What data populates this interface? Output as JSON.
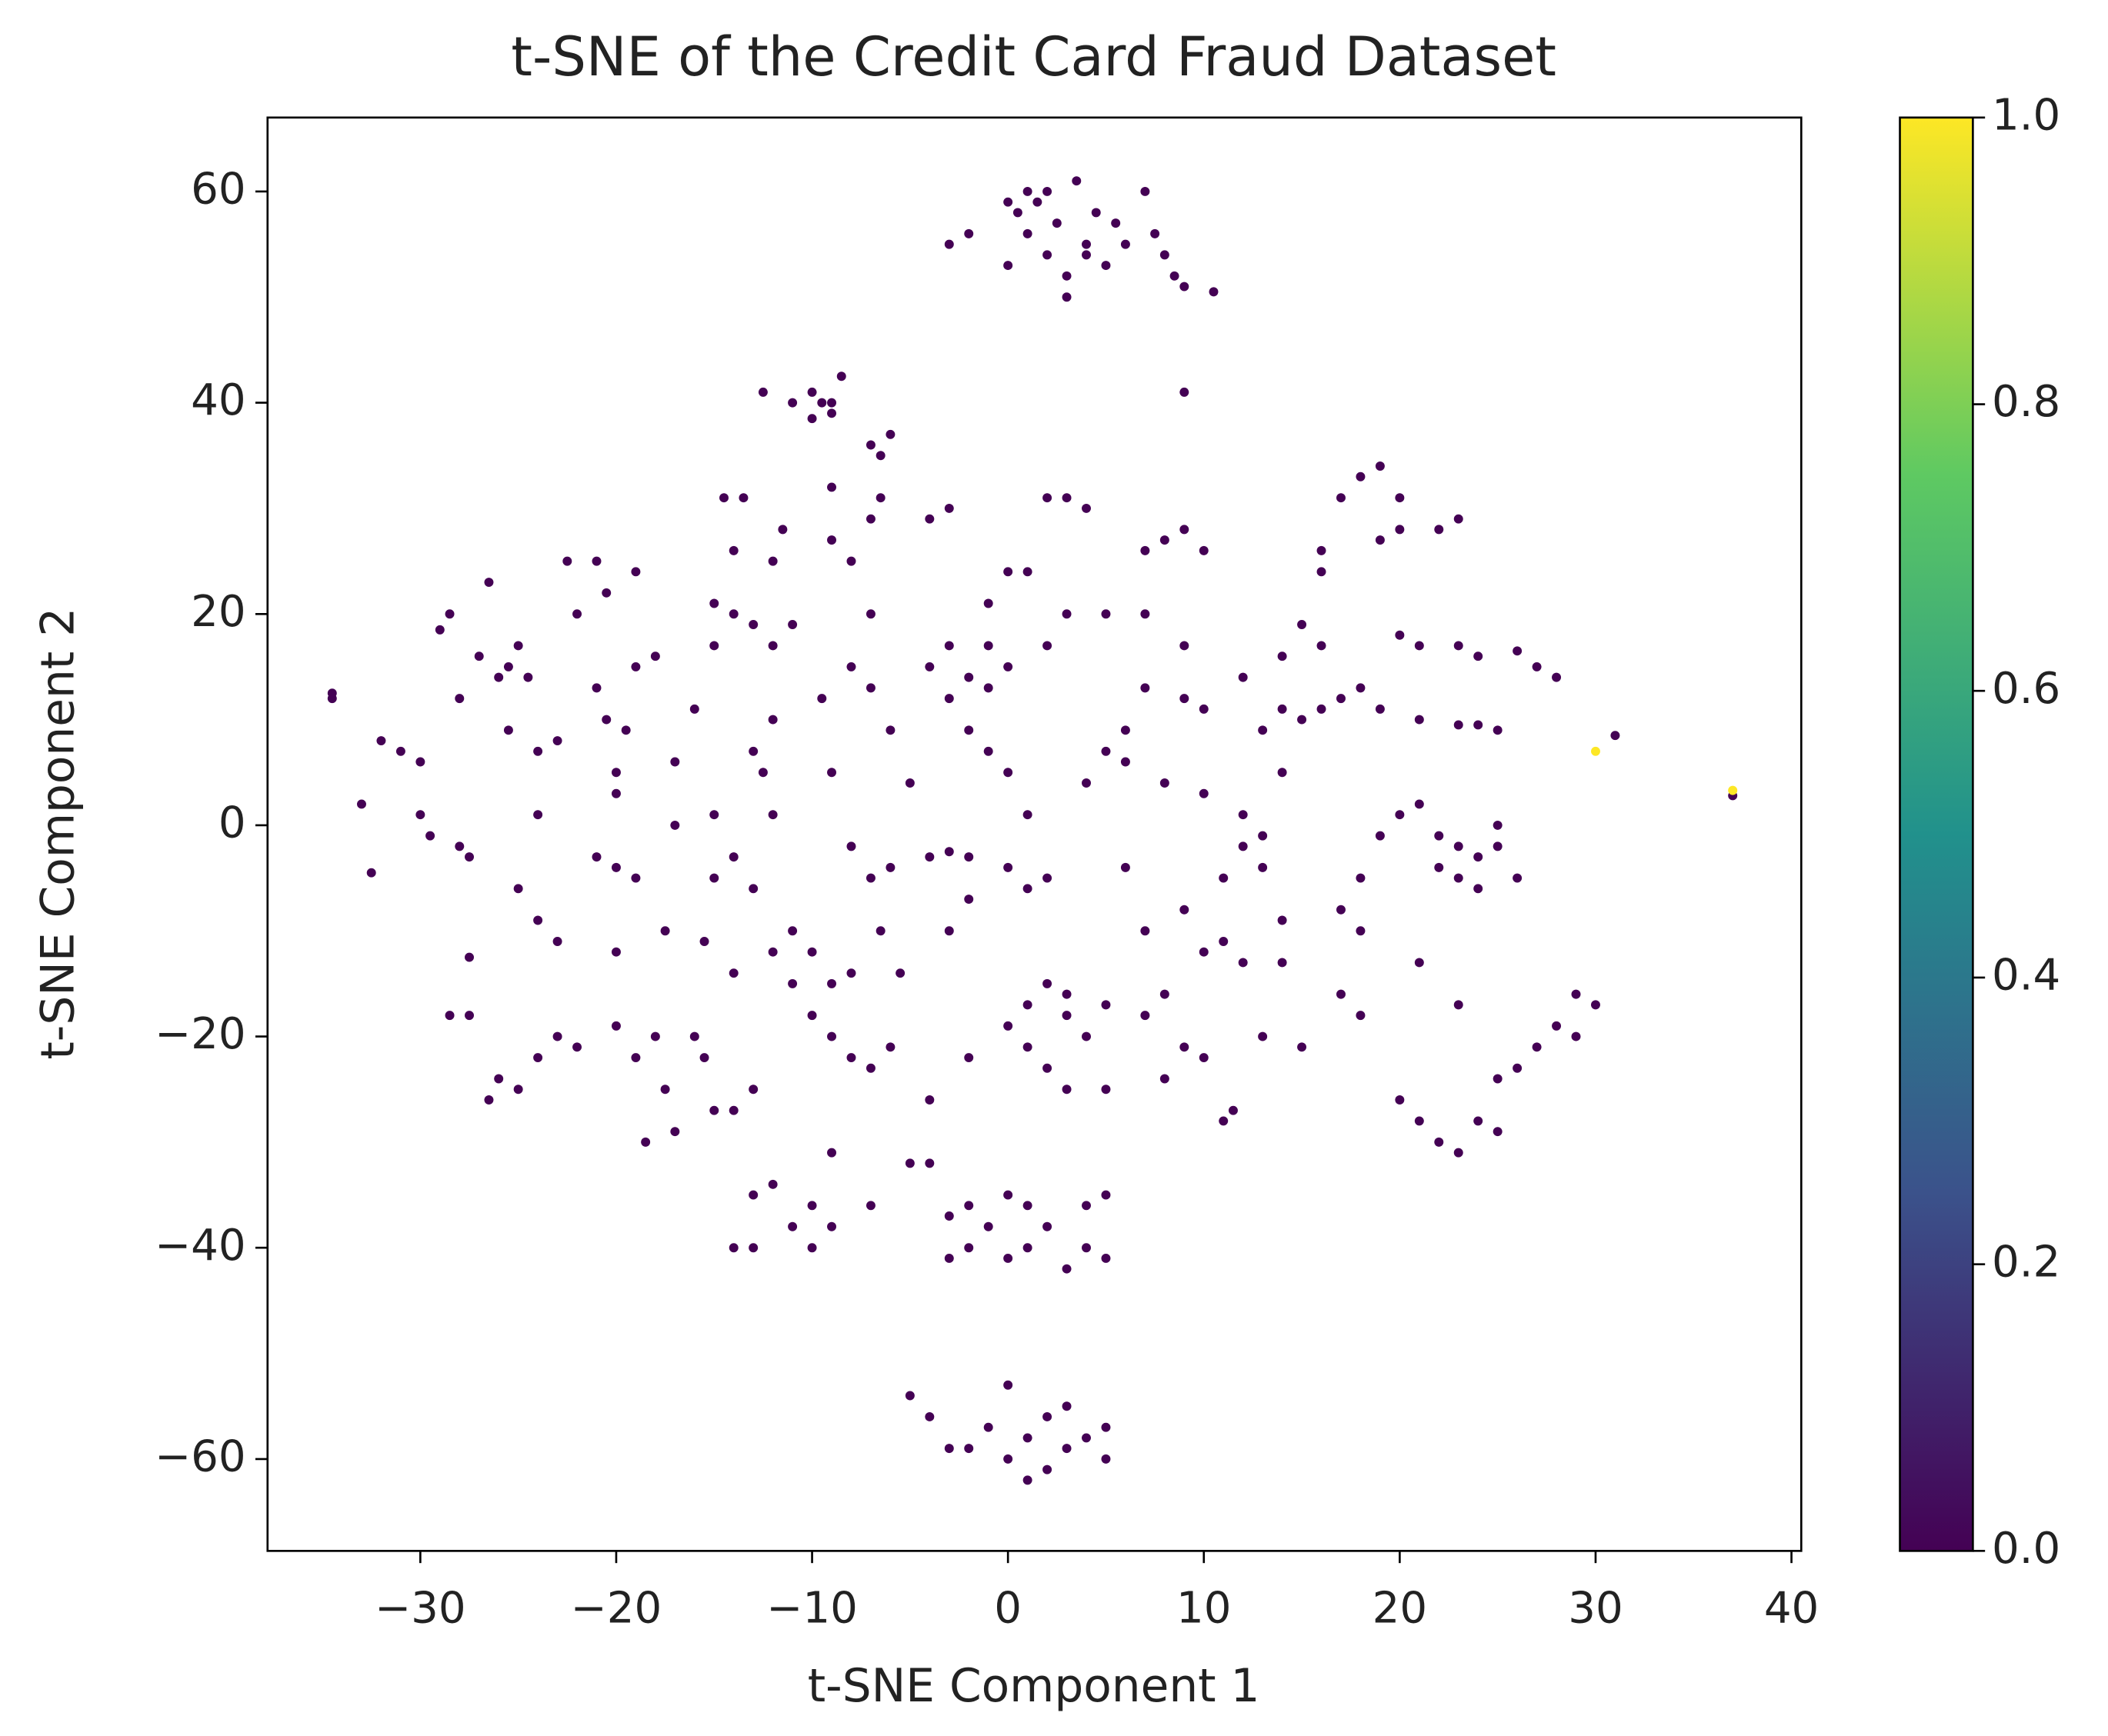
{
  "chart_data": {
    "type": "scatter",
    "title": "t-SNE of the Credit Card Fraud Dataset",
    "x_label": "t-SNE Component 1",
    "y_label": "t-SNE Component 2",
    "xlim": [
      -37.8,
      40.5
    ],
    "ylim": [
      -68.7,
      67.0
    ],
    "xticks": [
      {
        "value": -30,
        "label": "−30"
      },
      {
        "value": -20,
        "label": "−20"
      },
      {
        "value": -10,
        "label": "−10"
      },
      0,
      10,
      20,
      30,
      40
    ],
    "yticks": [
      {
        "value": -60,
        "label": "−60"
      },
      {
        "value": -40,
        "label": "−40"
      },
      {
        "value": -20,
        "label": "−20"
      },
      0,
      20,
      40,
      60
    ],
    "colormap": "viridis",
    "clim": [
      0,
      1
    ],
    "cticks": [
      {
        "value": 0,
        "label": "0.0"
      },
      {
        "value": 0.2,
        "label": "0.2"
      },
      {
        "value": 0.4,
        "label": "0.4"
      },
      {
        "value": 0.6,
        "label": "0.6"
      },
      {
        "value": 0.8,
        "label": "0.8"
      },
      {
        "value": 1,
        "label": "1.0"
      }
    ],
    "series": [
      {
        "color_value": 0,
        "x": [
          -3,
          -2,
          0,
          0.5,
          1,
          1.5,
          2,
          2.5,
          3,
          3,
          3.5,
          4,
          4.5,
          5,
          5.5,
          6,
          7,
          7.5,
          8,
          8.5,
          9,
          10.5,
          1,
          2,
          0,
          4,
          9,
          -12.5,
          -11,
          -10,
          -9.5,
          -9,
          -10,
          -8.5,
          -9,
          -7,
          -6,
          -6.5,
          -34.5,
          -34.5,
          -33,
          -32.5,
          -32,
          -31,
          -30,
          -30,
          -29.5,
          -29,
          -28.5,
          -28,
          -28,
          -27.5,
          -27.5,
          -28.5,
          -27.5,
          -27,
          -26.5,
          -26,
          -25.5,
          -25,
          -24.5,
          -25.5,
          -24,
          -23,
          -24,
          -25,
          -24,
          -23,
          -22,
          -21,
          -22.5,
          -21,
          -20.5,
          -20,
          -20,
          -20.5,
          -19,
          -19,
          -18,
          -19.5,
          -21,
          -20,
          -19,
          -20,
          -17.5,
          -20,
          -19,
          -18,
          -17.5,
          -18.5,
          -17,
          -25,
          -26,
          -26.5,
          -24,
          -23,
          -22,
          -16,
          -15.5,
          -15,
          -14,
          -13,
          -16,
          -17,
          -15,
          -17,
          -15,
          -15.5,
          -14,
          -14,
          -13,
          -15,
          -15,
          -14,
          -14.5,
          -13.5,
          -14,
          -13,
          -12,
          -12,
          -11.5,
          -11,
          -12,
          -13,
          -12.5,
          -12,
          -11,
          -12,
          -11,
          -10,
          -10,
          -9,
          -8,
          -9,
          -8,
          -8,
          -7,
          -6,
          -9,
          -9.5,
          -8,
          -7,
          -9,
          -9,
          -7,
          -6.5,
          -8,
          -7,
          -6,
          -5,
          -6.5,
          -5.5,
          -7,
          -6,
          -4,
          -2,
          -3,
          -2,
          -4,
          -3,
          -2,
          -4,
          -3,
          -2,
          -1,
          -3,
          -1,
          0,
          -2,
          -1,
          0,
          -4,
          -3,
          -1,
          0,
          1,
          1,
          0,
          1,
          2,
          2,
          1,
          3,
          0,
          1,
          2,
          3,
          5,
          4,
          3,
          5,
          2,
          3,
          4,
          2,
          3,
          5,
          4,
          5,
          6,
          6,
          7,
          6,
          7,
          7,
          8,
          8,
          9,
          10,
          11,
          11.5,
          10,
          11,
          12,
          9,
          11,
          12,
          13,
          14,
          14,
          13,
          15,
          13,
          12,
          10,
          8,
          7,
          8,
          9,
          10,
          7,
          9,
          9,
          10,
          12,
          13,
          14,
          15,
          16,
          14,
          15,
          16,
          17,
          18,
          19,
          14,
          16,
          16,
          17,
          18,
          19,
          20,
          19,
          20,
          22,
          23,
          20,
          21,
          23,
          24,
          21,
          23,
          24,
          25,
          26,
          27,
          28,
          31,
          19,
          20,
          21,
          22,
          22,
          23,
          23,
          24,
          24,
          25,
          25,
          26,
          18,
          17,
          18,
          21,
          17,
          18,
          23,
          20,
          21,
          22,
          23,
          24,
          25,
          25,
          26,
          27,
          28,
          29,
          30,
          29,
          4,
          5,
          5,
          4,
          3,
          2,
          1,
          0,
          -1,
          -2,
          -3,
          -3,
          -2,
          0,
          1,
          -5,
          -4,
          -7,
          -9,
          -9,
          -10,
          -10,
          -11,
          -12,
          -13,
          -13,
          -14,
          -5,
          -4,
          -3,
          -2,
          -1,
          0,
          0,
          1,
          1,
          2,
          2,
          3,
          3,
          4,
          5,
          5,
          37
        ],
        "y": [
          55,
          56,
          53,
          58,
          56,
          59,
          54,
          57,
          52,
          50,
          61,
          55,
          58,
          53,
          57,
          55,
          60,
          56,
          54,
          52,
          51,
          50.5,
          60,
          60,
          59,
          54,
          41,
          41,
          40,
          41,
          40,
          39,
          38.5,
          42.5,
          40,
          36,
          37,
          35,
          12,
          12.5,
          2,
          -4.5,
          8,
          7,
          6,
          1,
          -1,
          18.5,
          20,
          12,
          -2,
          -3,
          -12.5,
          -18,
          -18,
          16,
          23,
          14,
          15,
          17,
          14,
          9,
          7,
          8,
          1,
          -6,
          -9,
          -11,
          20,
          25,
          25,
          13,
          10,
          5,
          3,
          22,
          24,
          15,
          16,
          9,
          -3,
          -4,
          -5,
          -12,
          -10,
          -19,
          -22,
          -20,
          -25,
          -30,
          -29,
          -25,
          -24,
          -26,
          -22,
          -20,
          -21,
          -20,
          -22,
          -27,
          -27,
          -25,
          11,
          6,
          1,
          0,
          -5,
          -11,
          -14,
          -3,
          -6,
          17,
          21,
          26,
          31,
          31,
          20,
          19,
          17,
          25,
          28,
          19,
          10,
          7,
          5,
          1,
          -10,
          -12,
          -15,
          -12,
          -18,
          -15,
          -14,
          -20,
          -22,
          -2,
          -5,
          -4,
          5,
          12,
          15,
          20,
          27,
          32,
          29,
          31,
          25,
          13,
          9,
          4,
          -10,
          -14,
          -23,
          -21,
          -26,
          -22,
          -10,
          -7,
          -3,
          -2.5,
          -3,
          15,
          12,
          14,
          13,
          17,
          17,
          15,
          9,
          7,
          5,
          29,
          30,
          21,
          24,
          24,
          1,
          -4,
          -6,
          -5,
          -15,
          -17,
          -16,
          -19,
          -21,
          -23,
          -25,
          -25,
          -20,
          -18,
          -17,
          31,
          31,
          30,
          17,
          20,
          20,
          4,
          7,
          6,
          9,
          13,
          -4,
          -10,
          -18,
          -16,
          -24,
          -21,
          -22,
          -28,
          -27,
          -12,
          -11,
          -13,
          -8,
          -5,
          -2,
          -4,
          -9,
          -13,
          -20,
          -21,
          -1,
          1,
          3,
          4,
          26,
          27,
          28,
          26,
          20,
          17,
          12,
          11,
          14,
          9,
          11,
          10,
          11,
          16,
          19,
          17,
          12,
          13,
          11,
          5,
          24,
          26,
          31,
          33,
          34,
          31,
          27,
          28,
          28,
          29,
          18,
          17,
          17,
          16,
          10,
          9.5,
          9.5,
          9,
          16.5,
          15,
          14,
          8.5,
          -1,
          1,
          2,
          -1,
          -4,
          -2,
          -5,
          -3,
          -6,
          0,
          -2,
          -5,
          -5,
          -8,
          -10,
          -13,
          -16,
          -18,
          -17,
          -26,
          -28,
          -30,
          -31,
          -28,
          -29,
          -24,
          -23,
          -21,
          -19,
          -16,
          -17,
          -20,
          -36,
          -35,
          -41,
          -40,
          -42,
          -38,
          -36,
          -35,
          -38,
          -40,
          -41,
          -37,
          -36,
          -41,
          -40,
          -32,
          -32,
          -36,
          -31,
          -38,
          -36,
          -40,
          -38,
          -34,
          -35,
          -40,
          -40,
          -54,
          -56,
          -59,
          -59,
          -57,
          -60,
          -53,
          -58,
          -62,
          -61,
          -56,
          -55,
          -59,
          -58,
          -57,
          -60,
          2.8
        ]
      },
      {
        "color_value": 1,
        "x": [
          30,
          37
        ],
        "y": [
          7,
          3.3
        ]
      }
    ]
  }
}
